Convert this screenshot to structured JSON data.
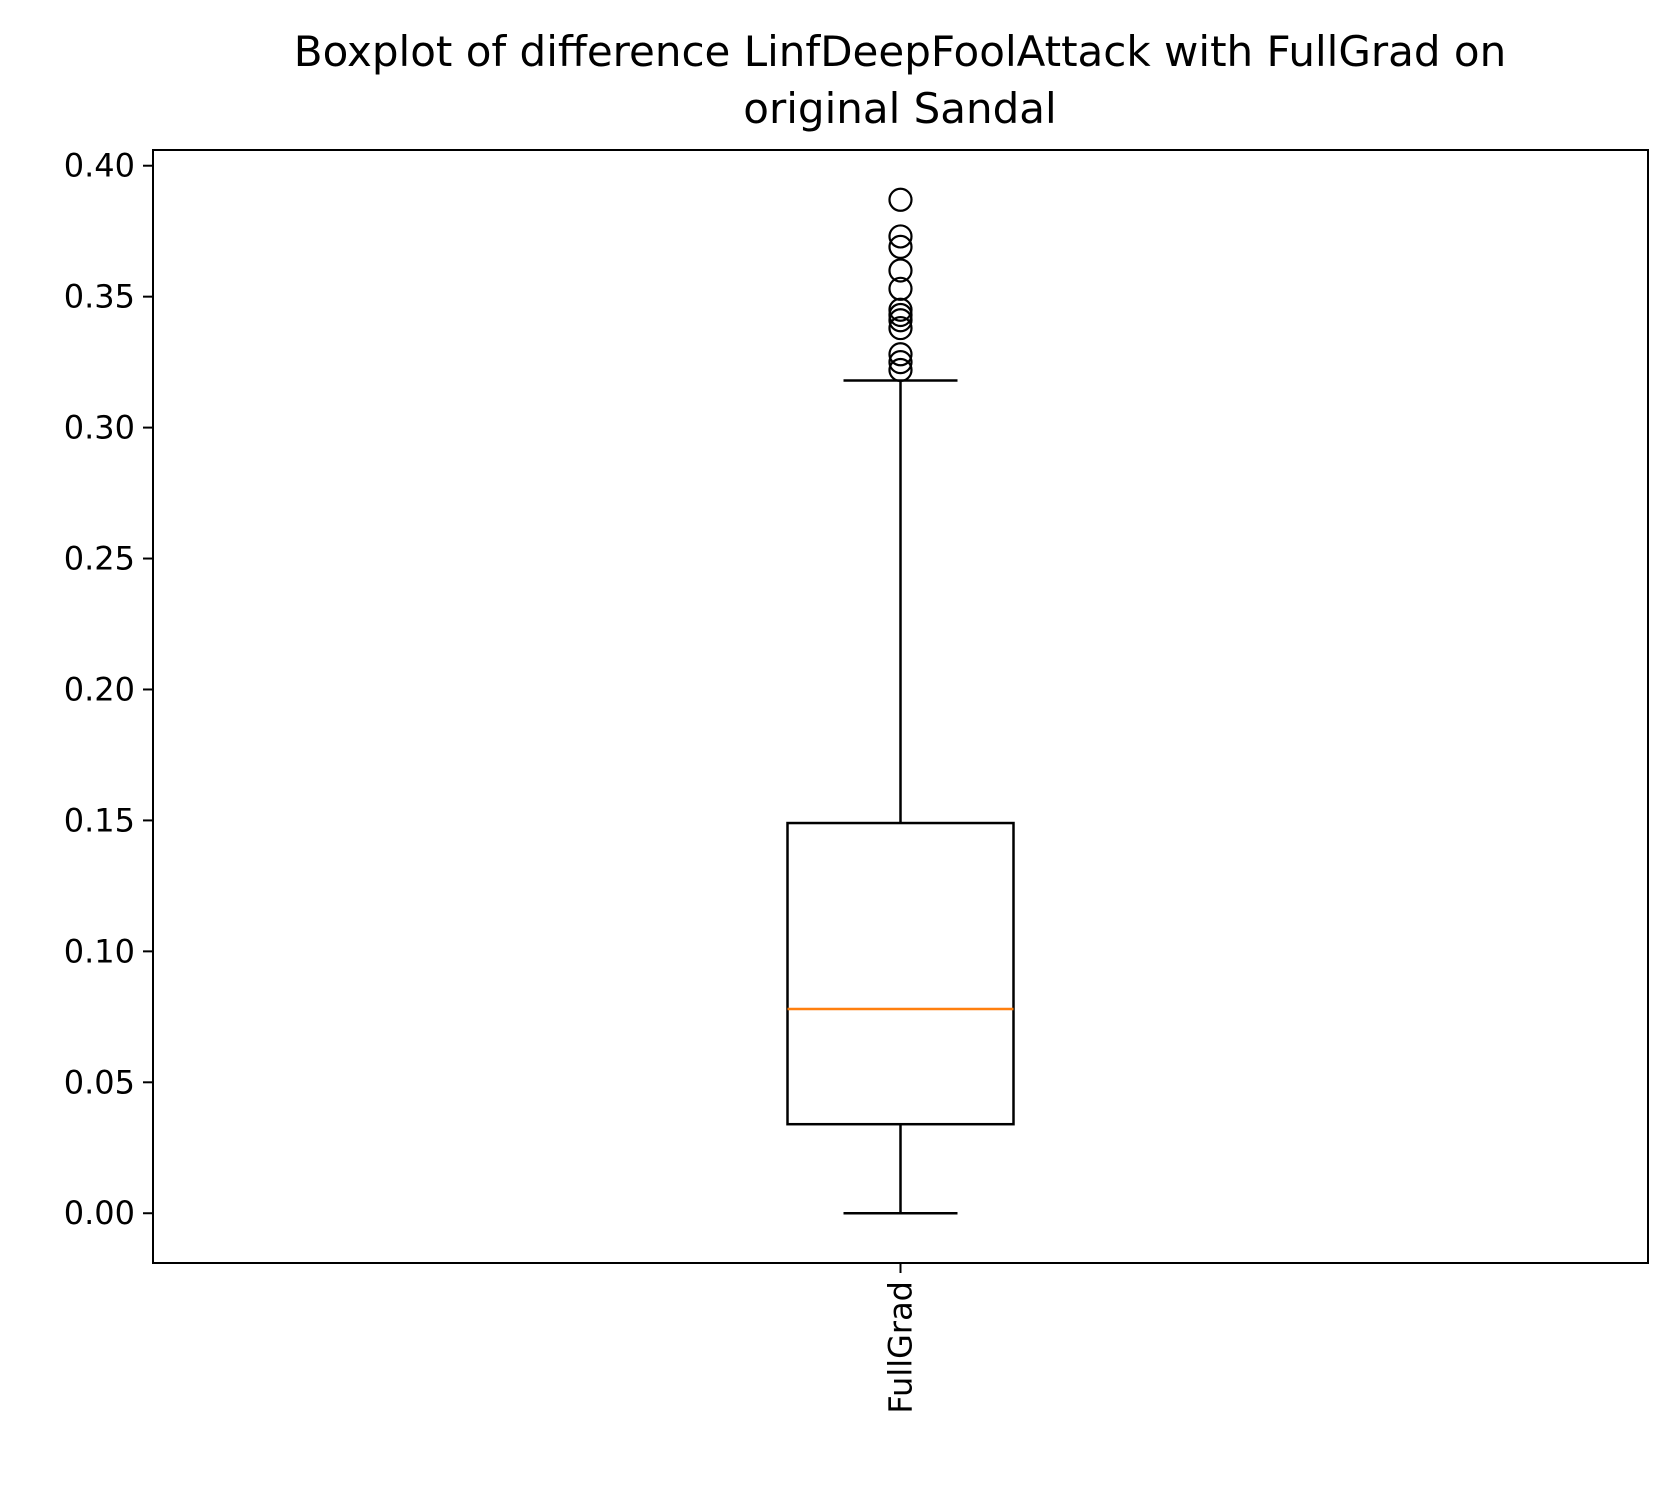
{
  "chart_data": {
    "type": "box",
    "title_lines": [
      "Boxplot of difference LinfDeepFoolAttack with FullGrad on",
      "original Sandal"
    ],
    "categories": [
      "FullGrad"
    ],
    "xlabel": "",
    "ylabel": "",
    "ylim": [
      -0.019,
      0.406
    ],
    "yticks": [
      0.0,
      0.05,
      0.1,
      0.15,
      0.2,
      0.25,
      0.3,
      0.35,
      0.4
    ],
    "ytick_labels": [
      "0.00",
      "0.05",
      "0.10",
      "0.15",
      "0.20",
      "0.25",
      "0.30",
      "0.35",
      "0.40"
    ],
    "grid": false,
    "boxes": [
      {
        "name": "FullGrad",
        "whisker_low": 0.0,
        "q1": 0.034,
        "median": 0.078,
        "q3": 0.149,
        "whisker_high": 0.318,
        "outliers": [
          0.322,
          0.325,
          0.328,
          0.338,
          0.341,
          0.343,
          0.345,
          0.353,
          0.36,
          0.369,
          0.373,
          0.387
        ]
      }
    ],
    "colors": {
      "box": "#000000",
      "median": "#ff7f0e",
      "whisker": "#000000",
      "outlier": "#000000"
    }
  }
}
